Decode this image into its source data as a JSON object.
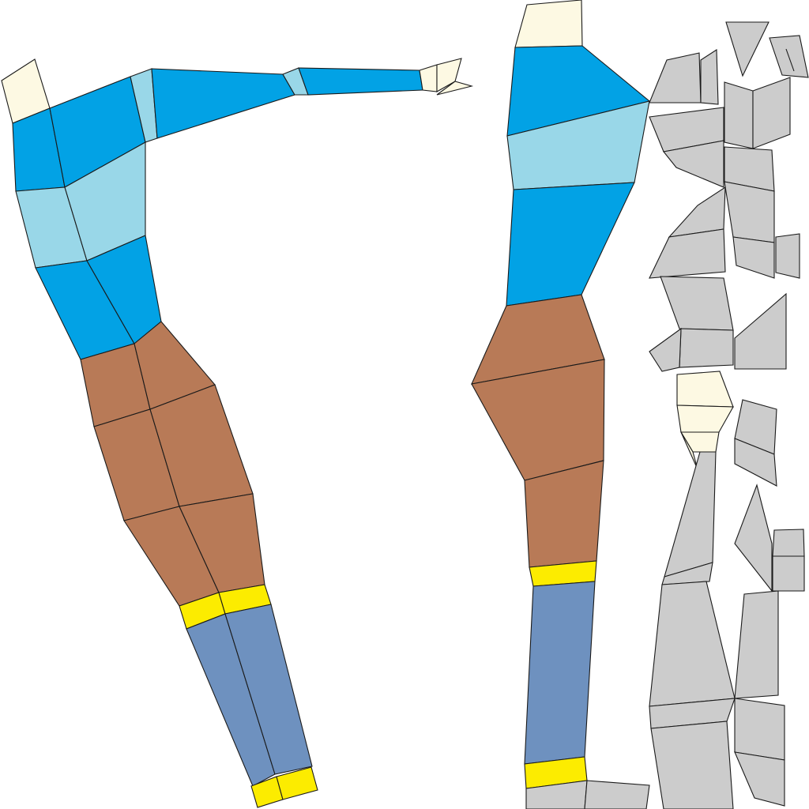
{
  "colors": {
    "background": "#ffffff",
    "outline": "#1a1a1a",
    "skin": "#fdf9e3",
    "shirt_dark": "#02a2e5",
    "shirt_light": "#99d7e8",
    "trousers": "#b87a57",
    "sock_band": "#fcec00",
    "jeans": "#6e91bf",
    "unassigned": "#cccccc"
  },
  "islands": [
    {
      "id": "front-body",
      "material": "mixed"
    },
    {
      "id": "back-body",
      "material": "mixed"
    },
    {
      "id": "unassigned-fragments",
      "material": "unassigned"
    }
  ]
}
